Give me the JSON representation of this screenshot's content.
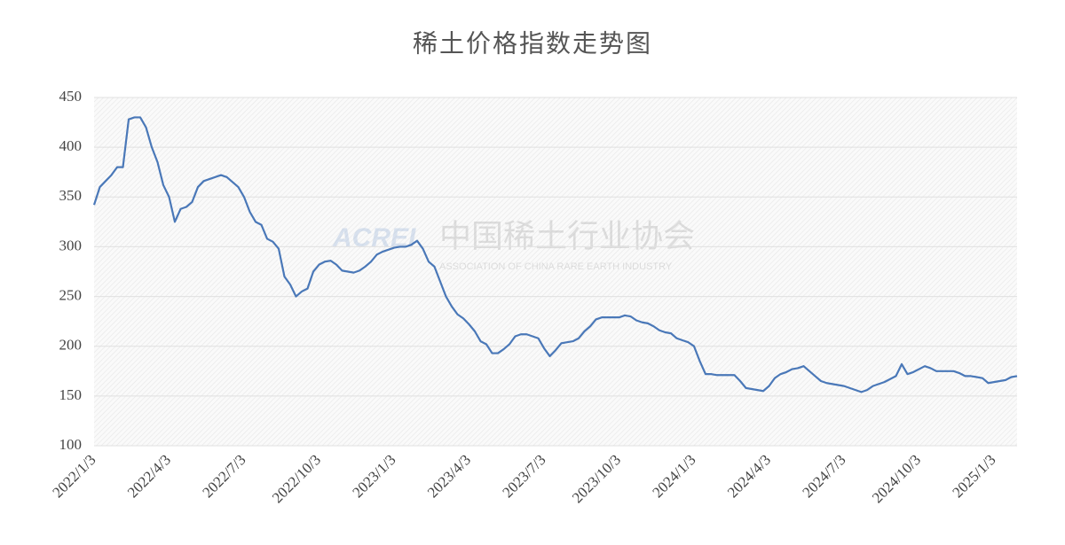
{
  "chart_data": {
    "type": "line",
    "title": "稀土价格指数走势图",
    "watermark": {
      "logo": "ACREI",
      "name": "中国稀土行业协会",
      "subtitle": "ASSOCIATION OF CHINA RARE EARTH INDUSTRY"
    },
    "color": "#4a78b8",
    "grid": true,
    "ylim": [
      100,
      450
    ],
    "yticks": [
      100,
      150,
      200,
      250,
      300,
      350,
      400,
      450
    ],
    "categories": [
      "2022/1/3",
      null,
      null,
      null,
      null,
      null,
      null,
      null,
      null,
      null,
      null,
      null,
      null,
      "2022/4/3",
      null,
      null,
      null,
      null,
      null,
      null,
      null,
      null,
      null,
      null,
      null,
      null,
      "2022/7/3",
      null,
      null,
      null,
      null,
      null,
      null,
      null,
      null,
      null,
      null,
      null,
      null,
      "2022/10/3",
      null,
      null,
      null,
      null,
      null,
      null,
      null,
      null,
      null,
      null,
      null,
      null,
      "2023/1/3",
      null,
      null,
      null,
      null,
      null,
      null,
      null,
      null,
      null,
      null,
      null,
      null,
      "2023/4/3",
      null,
      null,
      null,
      null,
      null,
      null,
      null,
      null,
      null,
      null,
      null,
      null,
      "2023/7/3",
      null,
      null,
      null,
      null,
      null,
      null,
      null,
      null,
      null,
      null,
      null,
      null,
      "2023/10/3",
      null,
      null,
      null,
      null,
      null,
      null,
      null,
      null,
      null,
      null,
      null,
      null,
      "2024/1/3",
      null,
      null,
      null,
      null,
      null,
      null,
      null,
      null,
      null,
      null,
      null,
      null,
      "2024/4/3",
      null,
      null,
      null,
      null,
      null,
      null,
      null,
      null,
      null,
      null,
      null,
      null,
      "2024/7/3",
      null,
      null,
      null,
      null,
      null,
      null,
      null,
      null,
      null,
      null,
      null,
      null,
      "2024/10/3",
      null,
      null,
      null,
      null,
      null,
      null,
      null,
      null,
      null,
      null,
      null,
      null,
      "2025/1/3",
      null,
      null,
      null,
      null
    ],
    "values": [
      342,
      360,
      366,
      372,
      380,
      380,
      428,
      430,
      430,
      420,
      400,
      385,
      362,
      350,
      325,
      338,
      340,
      345,
      360,
      366,
      368,
      370,
      372,
      370,
      365,
      360,
      350,
      335,
      325,
      322,
      308,
      305,
      298,
      270,
      262,
      250,
      255,
      258,
      275,
      282,
      285,
      286,
      282,
      276,
      275,
      274,
      276,
      280,
      285,
      292,
      295,
      297,
      299,
      300,
      300,
      302,
      306,
      298,
      285,
      280,
      265,
      250,
      240,
      232,
      228,
      222,
      215,
      205,
      202,
      193,
      193,
      197,
      202,
      210,
      212,
      212,
      210,
      208,
      198,
      190,
      196,
      203,
      204,
      205,
      208,
      215,
      220,
      227,
      229,
      229,
      229,
      229,
      231,
      230,
      226,
      224,
      223,
      220,
      216,
      214,
      213,
      208,
      206,
      204,
      200,
      185,
      172,
      172,
      171,
      171,
      171,
      171,
      165,
      158,
      157,
      156,
      155,
      160,
      168,
      172,
      174,
      177,
      178,
      180,
      175,
      170,
      165,
      163,
      162,
      161,
      160,
      158,
      156,
      154,
      156,
      160,
      162,
      164,
      167,
      170,
      182,
      172,
      174,
      177,
      180,
      178,
      175,
      175,
      175,
      175,
      173,
      170,
      170,
      169,
      168,
      163,
      164,
      165,
      166,
      169,
      170
    ]
  }
}
